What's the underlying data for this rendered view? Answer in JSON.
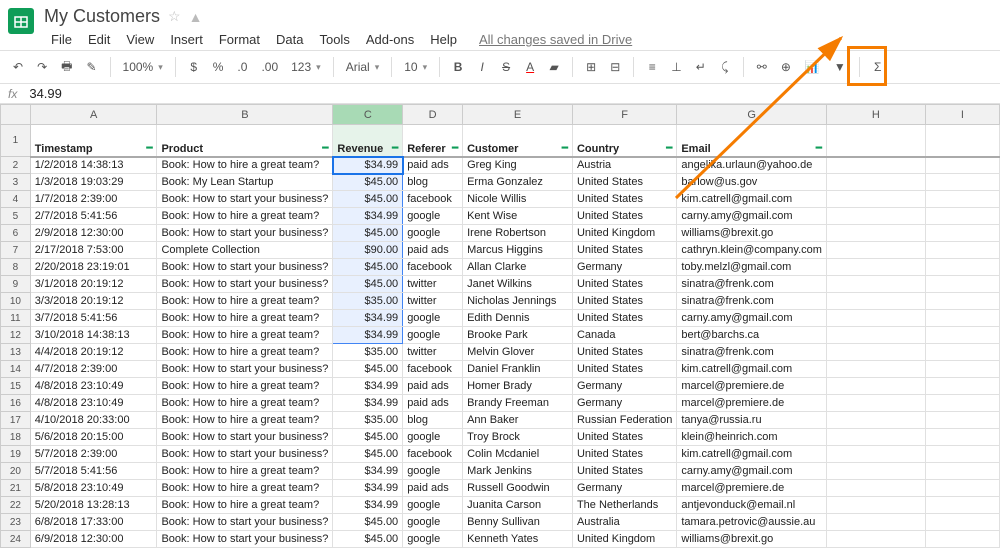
{
  "doc_title": "My Customers",
  "menus": {
    "file": "File",
    "edit": "Edit",
    "view": "View",
    "insert": "Insert",
    "format": "Format",
    "data": "Data",
    "tools": "Tools",
    "addons": "Add-ons",
    "help": "Help"
  },
  "saved_text": "All changes saved in Drive",
  "toolbar": {
    "zoom": "100%",
    "font": "Arial",
    "fontsize": "10",
    "bold": "B",
    "italic": "I",
    "strike": "S"
  },
  "fx_value": "34.99",
  "columns": [
    {
      "letter": "A",
      "width": 127,
      "header": "Timestamp"
    },
    {
      "letter": "B",
      "width": 150,
      "header": "Product"
    },
    {
      "letter": "C",
      "width": 70,
      "header": "Revenue"
    },
    {
      "letter": "D",
      "width": 60,
      "header": "Referer"
    },
    {
      "letter": "E",
      "width": 110,
      "header": "Customer"
    },
    {
      "letter": "F",
      "width": 100,
      "header": "Country"
    },
    {
      "letter": "G",
      "width": 130,
      "header": "Email"
    },
    {
      "letter": "H",
      "width": 100,
      "header": ""
    },
    {
      "letter": "I",
      "width": 75,
      "header": ""
    }
  ],
  "rows": [
    {
      "n": 2,
      "ts": "1/2/2018 14:38:13",
      "prod": "Book: How to hire a great team?",
      "rev": "$34.99",
      "ref": "paid ads",
      "cust": "Greg King",
      "ctry": "Austria",
      "email": "angelika.urlaun@yahoo.de"
    },
    {
      "n": 3,
      "ts": "1/3/2018 19:03:29",
      "prod": "Book: My Lean Startup",
      "rev": "$45.00",
      "ref": "blog",
      "cust": "Erma Gonzalez",
      "ctry": "United States",
      "email": "barlow@us.gov"
    },
    {
      "n": 4,
      "ts": "1/7/2018 2:39:00",
      "prod": "Book: How to start your business?",
      "rev": "$45.00",
      "ref": "facebook",
      "cust": "Nicole Willis",
      "ctry": "United States",
      "email": "kim.catrell@gmail.com"
    },
    {
      "n": 5,
      "ts": "2/7/2018 5:41:56",
      "prod": "Book: How to hire a great team?",
      "rev": "$34.99",
      "ref": "google",
      "cust": "Kent Wise",
      "ctry": "United States",
      "email": "carny.amy@gmail.com"
    },
    {
      "n": 6,
      "ts": "2/9/2018 12:30:00",
      "prod": "Book: How to start your business?",
      "rev": "$45.00",
      "ref": "google",
      "cust": "Irene Robertson",
      "ctry": "United Kingdom",
      "email": "williams@brexit.go"
    },
    {
      "n": 7,
      "ts": "2/17/2018 7:53:00",
      "prod": "Complete Collection",
      "rev": "$90.00",
      "ref": "paid ads",
      "cust": "Marcus Higgins",
      "ctry": "United States",
      "email": "cathryn.klein@company.com"
    },
    {
      "n": 8,
      "ts": "2/20/2018 23:19:01",
      "prod": "Book: How to start your business?",
      "rev": "$45.00",
      "ref": "facebook",
      "cust": "Allan Clarke",
      "ctry": "Germany",
      "email": "toby.melzl@gmail.com"
    },
    {
      "n": 9,
      "ts": "3/1/2018 20:19:12",
      "prod": "Book: How to start your business?",
      "rev": "$45.00",
      "ref": "twitter",
      "cust": "Janet Wilkins",
      "ctry": "United States",
      "email": "sinatra@frenk.com"
    },
    {
      "n": 10,
      "ts": "3/3/2018 20:19:12",
      "prod": "Book: How to hire a great team?",
      "rev": "$35.00",
      "ref": "twitter",
      "cust": "Nicholas Jennings",
      "ctry": "United States",
      "email": "sinatra@frenk.com"
    },
    {
      "n": 11,
      "ts": "3/7/2018 5:41:56",
      "prod": "Book: How to hire a great team?",
      "rev": "$34.99",
      "ref": "google",
      "cust": "Edith Dennis",
      "ctry": "United States",
      "email": "carny.amy@gmail.com"
    },
    {
      "n": 12,
      "ts": "3/10/2018 14:38:13",
      "prod": "Book: How to hire a great team?",
      "rev": "$34.99",
      "ref": "google",
      "cust": "Brooke Park",
      "ctry": "Canada",
      "email": "bert@barchs.ca"
    },
    {
      "n": 13,
      "ts": "4/4/2018 20:19:12",
      "prod": "Book: How to hire a great team?",
      "rev": "$35.00",
      "ref": "twitter",
      "cust": "Melvin Glover",
      "ctry": "United States",
      "email": "sinatra@frenk.com"
    },
    {
      "n": 14,
      "ts": "4/7/2018 2:39:00",
      "prod": "Book: How to start your business?",
      "rev": "$45.00",
      "ref": "facebook",
      "cust": "Daniel Franklin",
      "ctry": "United States",
      "email": "kim.catrell@gmail.com"
    },
    {
      "n": 15,
      "ts": "4/8/2018 23:10:49",
      "prod": "Book: How to hire a great team?",
      "rev": "$34.99",
      "ref": "paid ads",
      "cust": "Homer Brady",
      "ctry": "Germany",
      "email": "marcel@premiere.de"
    },
    {
      "n": 16,
      "ts": "4/8/2018 23:10:49",
      "prod": "Book: How to hire a great team?",
      "rev": "$34.99",
      "ref": "paid ads",
      "cust": "Brandy Freeman",
      "ctry": "Germany",
      "email": "marcel@premiere.de"
    },
    {
      "n": 17,
      "ts": "4/10/2018 20:33:00",
      "prod": "Book: How to hire a great team?",
      "rev": "$35.00",
      "ref": "blog",
      "cust": "Ann Baker",
      "ctry": "Russian Federation",
      "email": "tanya@russia.ru"
    },
    {
      "n": 18,
      "ts": "5/6/2018 20:15:00",
      "prod": "Book: How to start your business?",
      "rev": "$45.00",
      "ref": "google",
      "cust": "Troy Brock",
      "ctry": "United States",
      "email": "klein@heinrich.com"
    },
    {
      "n": 19,
      "ts": "5/7/2018 2:39:00",
      "prod": "Book: How to start your business?",
      "rev": "$45.00",
      "ref": "facebook",
      "cust": "Colin Mcdaniel",
      "ctry": "United States",
      "email": "kim.catrell@gmail.com"
    },
    {
      "n": 20,
      "ts": "5/7/2018 5:41:56",
      "prod": "Book: How to hire a great team?",
      "rev": "$34.99",
      "ref": "google",
      "cust": "Mark Jenkins",
      "ctry": "United States",
      "email": "carny.amy@gmail.com"
    },
    {
      "n": 21,
      "ts": "5/8/2018 23:10:49",
      "prod": "Book: How to hire a great team?",
      "rev": "$34.99",
      "ref": "paid ads",
      "cust": "Russell Goodwin",
      "ctry": "Germany",
      "email": "marcel@premiere.de"
    },
    {
      "n": 22,
      "ts": "5/20/2018 13:28:13",
      "prod": "Book: How to hire a great team?",
      "rev": "$34.99",
      "ref": "google",
      "cust": "Juanita Carson",
      "ctry": "The Netherlands",
      "email": "antjevonduck@email.nl"
    },
    {
      "n": 23,
      "ts": "6/8/2018 17:33:00",
      "prod": "Book: How to start your business?",
      "rev": "$45.00",
      "ref": "google",
      "cust": "Benny Sullivan",
      "ctry": "Australia",
      "email": "tamara.petrovic@aussie.au"
    },
    {
      "n": 24,
      "ts": "6/9/2018 12:30:00",
      "prod": "Book: How to start your business?",
      "rev": "$45.00",
      "ref": "google",
      "cust": "Kenneth Yates",
      "ctry": "United Kingdom",
      "email": "williams@brexit.go"
    }
  ],
  "colors": {
    "accent": "#0f9d58",
    "highlight": "#f57c00",
    "sel_bg": "#d2e3fc",
    "sel_border": "#4285f4"
  }
}
